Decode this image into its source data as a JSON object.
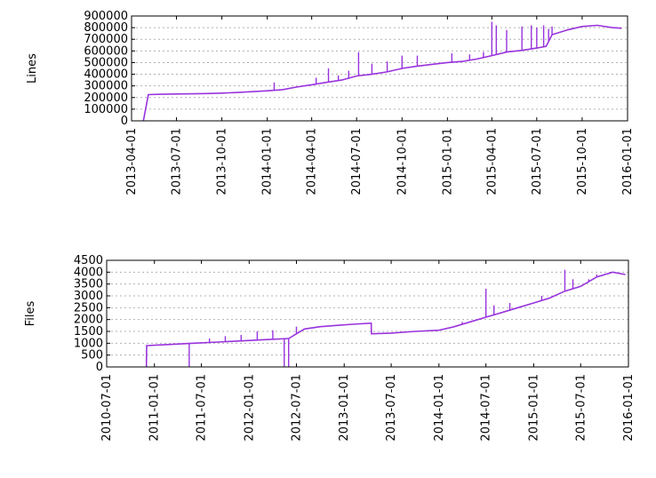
{
  "chart_data": [
    {
      "type": "line",
      "title": "",
      "xlabel": "",
      "ylabel": "Lines",
      "color": "#9933dd",
      "grid": true,
      "legend": "none",
      "xlim": [
        "2013-04-01",
        "2016-01-01"
      ],
      "ylim": [
        0,
        900000
      ],
      "yticks": [
        0,
        100000,
        200000,
        300000,
        400000,
        500000,
        600000,
        700000,
        800000,
        900000
      ],
      "xticks": [
        "2013-04-01",
        "2013-07-01",
        "2013-10-01",
        "2014-01-01",
        "2014-04-01",
        "2014-07-01",
        "2014-10-01",
        "2015-01-01",
        "2015-04-01",
        "2015-07-01",
        "2015-10-01",
        "2016-01-01"
      ],
      "series": [
        {
          "x": [
            "2013-04-25",
            "2013-05-05",
            "2013-06-01",
            "2013-07-01",
            "2013-08-01",
            "2013-09-01",
            "2013-10-01",
            "2013-11-01",
            "2013-12-01",
            "2014-01-01",
            "2014-02-01",
            "2014-03-01",
            "2014-04-01",
            "2014-05-01",
            "2014-06-01",
            "2014-07-01",
            "2014-08-01",
            "2014-09-01",
            "2014-10-01",
            "2014-11-01",
            "2014-12-01",
            "2015-01-01",
            "2015-02-01",
            "2015-03-01",
            "2015-04-01",
            "2015-05-01",
            "2015-06-01",
            "2015-07-01",
            "2015-07-20",
            "2015-08-01",
            "2015-09-01",
            "2015-10-01",
            "2015-11-01",
            "2015-12-01",
            "2015-12-20"
          ],
          "y": [
            0,
            225000,
            228000,
            230000,
            232000,
            234000,
            238000,
            243000,
            250000,
            258000,
            268000,
            290000,
            310000,
            330000,
            350000,
            385000,
            400000,
            420000,
            450000,
            470000,
            485000,
            500000,
            510000,
            530000,
            560000,
            590000,
            605000,
            625000,
            640000,
            740000,
            780000,
            810000,
            820000,
            800000,
            795000
          ]
        }
      ],
      "spikes": {
        "x": [
          "2014-01-15",
          "2014-04-10",
          "2014-05-05",
          "2014-05-25",
          "2014-06-15",
          "2014-07-05",
          "2014-08-01",
          "2014-09-01",
          "2014-10-01",
          "2014-11-01",
          "2015-01-10",
          "2015-02-15",
          "2015-03-15",
          "2015-04-01",
          "2015-04-10",
          "2015-05-01",
          "2015-06-01",
          "2015-06-20",
          "2015-07-01",
          "2015-07-15",
          "2015-07-25",
          "2015-08-01"
        ],
        "y": [
          330000,
          370000,
          450000,
          390000,
          430000,
          590000,
          490000,
          510000,
          560000,
          560000,
          580000,
          570000,
          590000,
          850000,
          820000,
          780000,
          810000,
          820000,
          800000,
          820000,
          790000,
          810000
        ]
      }
    },
    {
      "type": "line",
      "title": "",
      "xlabel": "",
      "ylabel": "Files",
      "color": "#9933dd",
      "grid": true,
      "legend": "none",
      "xlim": [
        "2010-07-01",
        "2016-01-01"
      ],
      "ylim": [
        0,
        4500
      ],
      "yticks": [
        0,
        500,
        1000,
        1500,
        2000,
        2500,
        3000,
        3500,
        4000,
        4500
      ],
      "xticks": [
        "2010-07-01",
        "2011-01-01",
        "2011-07-01",
        "2012-01-01",
        "2012-07-01",
        "2013-01-01",
        "2013-07-01",
        "2014-01-01",
        "2014-07-01",
        "2015-01-01",
        "2015-07-01",
        "2016-01-01"
      ],
      "series": [
        {
          "x": [
            "2010-12-01",
            "2010-12-02",
            "2011-03-01",
            "2011-06-01",
            "2011-09-01",
            "2011-12-01",
            "2012-03-01",
            "2012-06-01",
            "2012-08-01",
            "2012-10-01",
            "2012-12-01",
            "2013-02-01",
            "2013-04-15",
            "2013-04-16",
            "2013-07-01",
            "2013-10-01",
            "2014-01-01",
            "2014-03-01",
            "2014-05-01",
            "2014-07-01",
            "2014-09-01",
            "2014-11-01",
            "2015-01-01",
            "2015-03-01",
            "2015-05-01",
            "2015-07-01",
            "2015-09-01",
            "2015-11-01",
            "2015-12-20"
          ],
          "y": [
            0,
            900,
            950,
            1000,
            1050,
            1100,
            1150,
            1200,
            1600,
            1700,
            1750,
            1800,
            1850,
            1400,
            1430,
            1500,
            1550,
            1700,
            1900,
            2100,
            2300,
            2500,
            2700,
            2900,
            3200,
            3400,
            3800,
            4000,
            3900
          ]
        }
      ],
      "spikes": {
        "x": [
          "2011-05-15",
          "2011-08-01",
          "2011-10-01",
          "2011-12-01",
          "2012-02-01",
          "2012-04-01",
          "2012-05-15",
          "2012-06-01",
          "2012-07-01",
          "2014-04-01",
          "2014-07-01",
          "2014-08-01",
          "2014-10-01",
          "2015-02-01",
          "2015-05-01",
          "2015-06-01",
          "2015-08-01",
          "2015-09-01"
        ],
        "y": [
          0,
          1200,
          1300,
          1350,
          1500,
          1550,
          0,
          0,
          1700,
          1900,
          3300,
          2600,
          2700,
          3000,
          4100,
          3700,
          3700,
          3900
        ]
      }
    }
  ]
}
